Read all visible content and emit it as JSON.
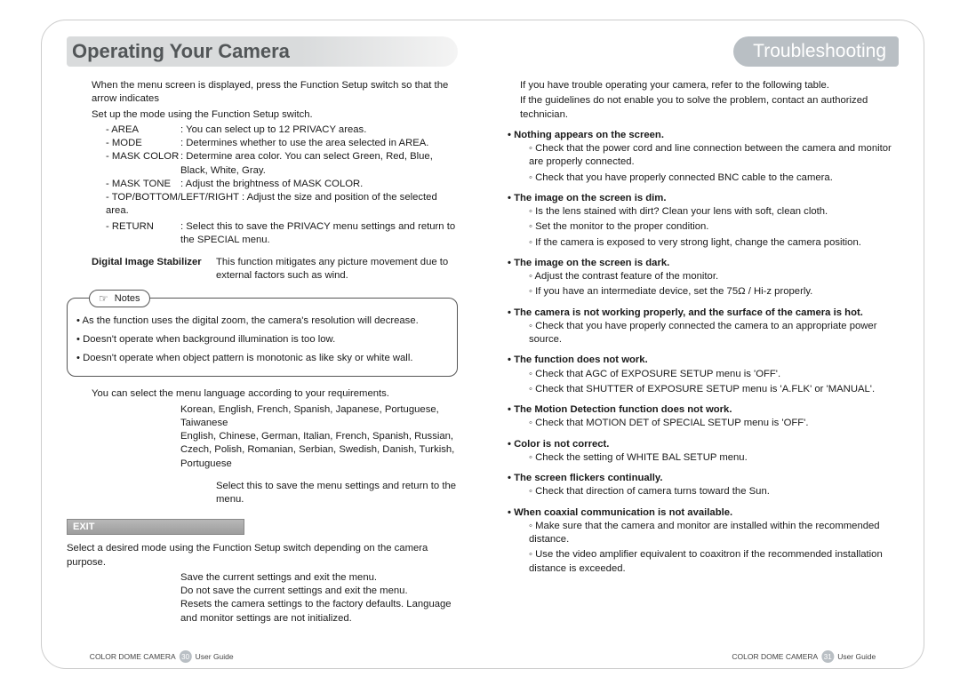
{
  "layout": {
    "page_bg": "#ffffff",
    "frame_border": "#cccccc",
    "header_gray_gradient_start": "#d9dbdc",
    "pill_bg": "#b9bfc4",
    "text_color": "#1a1a1a",
    "heading_color": "#525658",
    "base_font_size_pt": 8.5
  },
  "left": {
    "header": "Operating Your Camera",
    "p1": "When the menu screen is displayed, press the Function Setup switch so that the arrow indicates",
    "p2": "Set up the mode using the Function Setup switch.",
    "defs": [
      {
        "k": "- AREA",
        "v": ": You can select up to 12 PRIVACY areas."
      },
      {
        "k": "- MODE",
        "v": ": Determines whether to use the area selected in AREA."
      },
      {
        "k": "- MASK COLOR",
        "v": ": Determine area color. You can select Green, Red, Blue, Black, White, Gray."
      },
      {
        "k": "- MASK TONE",
        "v": ": Adjust the brightness of MASK COLOR."
      }
    ],
    "tblr": "- TOP/BOTTOM/LEFT/RIGHT : Adjust the size and position of the selected area.",
    "ret_k": "- RETURN",
    "ret_v": ": Select this to save the PRIVACY menu settings and return to the SPECIAL menu.",
    "dis_k": "Digital Image Stabilizer",
    "dis_v": "This function mitigates any picture movement due to external factors such as wind.",
    "notes_label": "Notes",
    "note1": "• As the function uses the digital zoom, the camera's resolution will decrease.",
    "note2": "• Doesn't operate when background illumination is too low.",
    "note3": "• Doesn't operate when object pattern is monotonic as like sky or white wall.",
    "lang_intro": "You can select the menu language according to your requirements.",
    "lang1_k": "",
    "lang1_v": "Korean, English, French, Spanish, Japanese, Portuguese, Taiwanese",
    "lang2_k": "",
    "lang2_v": "English, Chinese, German, Italian, French, Spanish, Russian, Czech, Polish, Romanian, Serbian, Swedish, Danish, Turkish, Portuguese",
    "retu_k": "",
    "retu_v": "Select this to save the menu settings and return to the  menu.",
    "exit_header": "EXIT",
    "exit_intro": "Select a desired  mode using the Function Setup switch depending on the camera purpose.",
    "exit_rows": [
      {
        "k": "",
        "v": "Save the current settings and exit the  menu."
      },
      {
        "k": "",
        "v": "Do not save the current settings and exit the  menu."
      },
      {
        "k": "",
        "v": "Resets the camera settings to the factory defaults. Language and monitor settings are not initialized."
      }
    ],
    "footer_label": "COLOR DOME CAMERA",
    "footer_pg": "30",
    "footer_guide": "User Guide"
  },
  "right": {
    "header": "Troubleshooting",
    "intro1": "If you have trouble operating your camera, refer to the following table.",
    "intro2": "If the guidelines do not enable you to solve the problem, contact an authorized technician.",
    "sections": [
      {
        "h": "• Nothing appears on the screen.",
        "items": [
          "Check that the power cord and line connection between the camera and monitor are properly connected.",
          "Check that you have properly connected BNC cable to the camera."
        ]
      },
      {
        "h": "• The image on the screen is dim.",
        "items": [
          "Is the lens stained with dirt? Clean your lens with soft, clean cloth.",
          "Set the monitor to the proper condition.",
          "If the camera is exposed to very strong light, change the camera position."
        ]
      },
      {
        "h": "• The image on the screen is dark.",
        "items": [
          "Adjust the contrast feature of the monitor.",
          "If you have an intermediate device, set the 75Ω / Hi-z properly."
        ]
      },
      {
        "h": "• The camera is not working properly, and the surface of the camera is hot.",
        "items": [
          "Check that you have properly connected the camera to an appropriate power source."
        ]
      },
      {
        "h": "• The  function does not work.",
        "items": [
          "Check that AGC of EXPOSURE SETUP menu is 'OFF'.",
          "Check that SHUTTER of EXPOSURE SETUP menu is 'A.FLK' or 'MANUAL'."
        ]
      },
      {
        "h": "• The Motion Detection function does not work.",
        "items": [
          "Check that MOTION DET of SPECIAL SETUP menu is 'OFF'."
        ]
      },
      {
        "h": "• Color is not correct.",
        "items": [
          "Check the setting of WHITE BAL SETUP menu."
        ]
      },
      {
        "h": "• The screen flickers continually.",
        "items": [
          "Check that direction of camera turns toward the Sun."
        ]
      },
      {
        "h": "• When coaxial communication is not available.",
        "items": [
          "Make sure that the camera and monitor are installed within the recommended distance.",
          "Use the video amplifier equivalent to coaxitron if the recommended installation distance is exceeded."
        ]
      }
    ],
    "footer_label": "COLOR DOME CAMERA",
    "footer_pg": "31",
    "footer_guide": "User Guide"
  }
}
